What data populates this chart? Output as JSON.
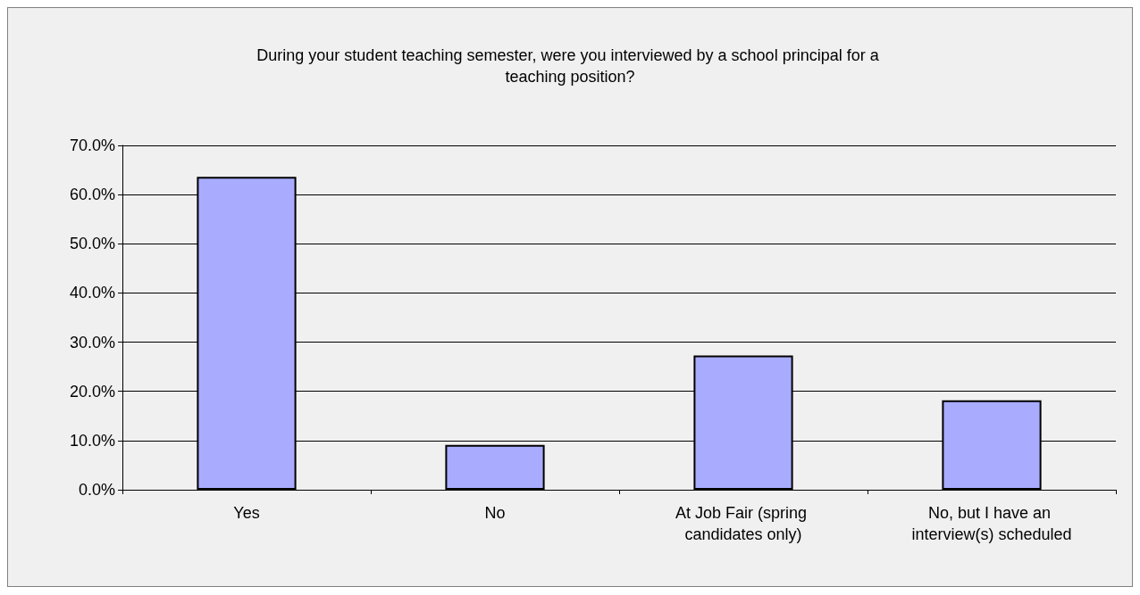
{
  "chart_data": {
    "type": "bar",
    "title": "During your student teaching semester, were you interviewed by a school principal for a teaching position?",
    "categories": [
      "Yes",
      "No",
      "At Job Fair (spring candidates only)",
      "No, but I have an interview(s) scheduled"
    ],
    "values": [
      63.6,
      9.1,
      27.3,
      18.2
    ],
    "color": "#a9abff",
    "ylim": [
      0,
      70
    ],
    "yticks": [
      {
        "value": 0,
        "label": "0.0%"
      },
      {
        "value": 10,
        "label": "10.0%"
      },
      {
        "value": 20,
        "label": "20.0%"
      },
      {
        "value": 30,
        "label": "30.0%"
      },
      {
        "value": 40,
        "label": "40.0%"
      },
      {
        "value": 50,
        "label": "50.0%"
      },
      {
        "value": 60,
        "label": "60.0%"
      },
      {
        "value": 70,
        "label": "70.0%"
      }
    ],
    "grid": "y"
  }
}
